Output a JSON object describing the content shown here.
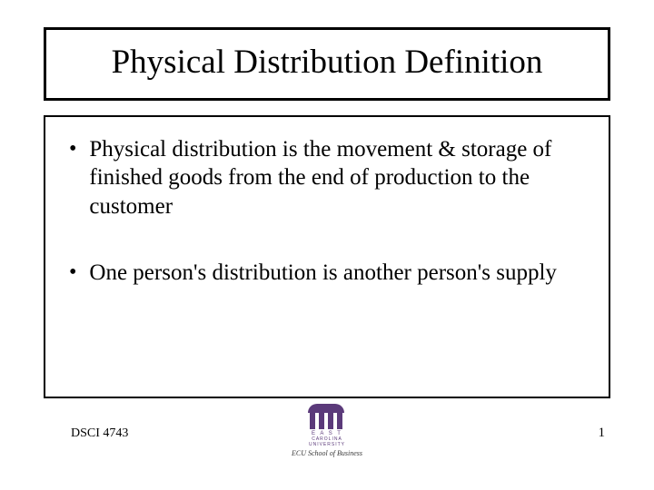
{
  "slide": {
    "title": "Physical Distribution Definition",
    "bullets": [
      "Physical distribution is the movement & storage of finished goods from the end of production to the customer",
      "One person's distribution is another person's supply"
    ],
    "footer": {
      "course": "DSCI 4743",
      "page": "1",
      "logo": {
        "line1": "E A S T",
        "line2": "CAROLINA",
        "line3": "UNIVERSITY",
        "school": "ECU School of Business"
      }
    }
  },
  "style": {
    "title_fontsize": 37,
    "body_fontsize": 25,
    "footer_fontsize": 14,
    "border_color": "#000000",
    "text_color": "#000000",
    "logo_color": "#5b3a7a",
    "background_color": "#ffffff"
  }
}
